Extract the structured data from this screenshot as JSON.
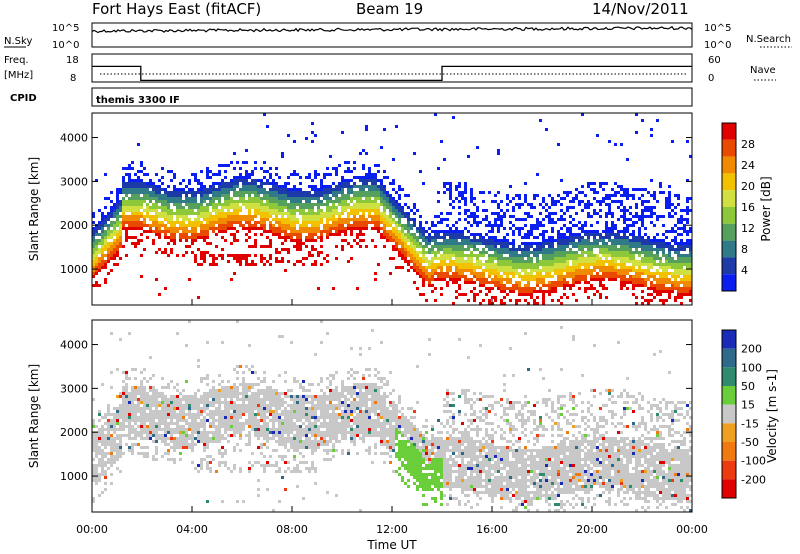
{
  "header": {
    "station": "Fort Hays East (fitACF)",
    "beam": "Beam 19",
    "date": "14/Nov/2011"
  },
  "noise_panel": {
    "left_label": "N.Sky",
    "left_ticks": [
      "10^5",
      "10^0"
    ],
    "right_label": "N.Search",
    "right_ticks": [
      "10^5",
      "10^0"
    ]
  },
  "freq_panel": {
    "left_label_top": "Freq.",
    "left_label_unit": "[MHz]",
    "left_ticks": [
      "18",
      "8"
    ],
    "right_label": "Nave",
    "right_ticks": [
      "60",
      "0"
    ],
    "freq_series": [
      {
        "t": 0.0,
        "mhz": 15
      },
      {
        "t": 1.95,
        "mhz": 15
      },
      {
        "t": 1.95,
        "mhz": 10
      },
      {
        "t": 14.0,
        "mhz": 10
      },
      {
        "t": 14.0,
        "mhz": 15
      },
      {
        "t": 24.0,
        "mhz": 15
      }
    ]
  },
  "cpid_panel": {
    "label": "CPID",
    "program": "themis 3300 IF"
  },
  "chart_data": [
    {
      "type": "heatmap",
      "name": "power",
      "ylabel": "Slant Range [km]",
      "yticks": [
        "1000",
        "2000",
        "3000",
        "4000"
      ],
      "ylim": [
        180,
        4560
      ],
      "xlim": [
        0,
        24
      ],
      "colorbar_label": "Power [dB]",
      "colorbar_ticks": [
        "4",
        "8",
        "12",
        "16",
        "20",
        "24",
        "28"
      ],
      "colorbar_range": [
        0,
        30
      ],
      "colors": [
        "#0a1ef0",
        "#1c3aa8",
        "#2f7a86",
        "#56a05e",
        "#8cc83a",
        "#cfe040",
        "#f2c200",
        "#f08a00",
        "#ea4a00",
        "#e00000"
      ]
    },
    {
      "type": "heatmap",
      "name": "velocity",
      "ylabel": "Slant Range [km]",
      "yticks": [
        "1000",
        "2000",
        "3000",
        "4000"
      ],
      "ylim": [
        180,
        4560
      ],
      "xlim": [
        0,
        24
      ],
      "colorbar_label": "Velocity [m s-1]",
      "colorbar_ticks": [
        "200",
        "100",
        "50",
        "15",
        "-15",
        "-50",
        "-100",
        "-200"
      ],
      "colors": [
        "#1a2bb8",
        "#2f6a8a",
        "#2f8a6e",
        "#6acd3a",
        "#c8c8c8",
        "#f0a020",
        "#f07a10",
        "#ee3a10",
        "#e00000"
      ],
      "ground_scatter_color": "#c4c4c4"
    }
  ],
  "x_axis": {
    "xlabel": "Time UT",
    "ticks": [
      "00:00",
      "04:00",
      "08:00",
      "12:00",
      "16:00",
      "20:00",
      "00:00"
    ],
    "range_hours": [
      0,
      24
    ]
  }
}
